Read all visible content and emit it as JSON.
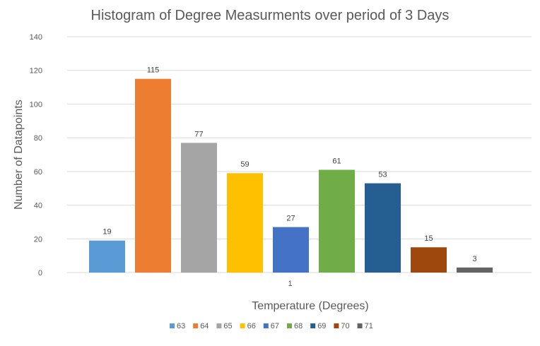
{
  "chart_data": {
    "type": "bar",
    "title": "Histogram of Degree Measurments over period of 3 Days",
    "xlabel": "Temperature (Degrees)",
    "ylabel": "Number of Datapoints",
    "categories": [
      "1"
    ],
    "ylim": [
      0,
      140
    ],
    "yticks": [
      0,
      20,
      40,
      60,
      80,
      100,
      120,
      140
    ],
    "grid": true,
    "legend_position": "bottom",
    "series": [
      {
        "name": "63",
        "values": [
          19
        ],
        "color": "#5b9bd5"
      },
      {
        "name": "64",
        "values": [
          115
        ],
        "color": "#ed7d31"
      },
      {
        "name": "65",
        "values": [
          77
        ],
        "color": "#a5a5a5"
      },
      {
        "name": "66",
        "values": [
          59
        ],
        "color": "#ffc000"
      },
      {
        "name": "67",
        "values": [
          27
        ],
        "color": "#4472c4"
      },
      {
        "name": "68",
        "values": [
          61
        ],
        "color": "#70ad47"
      },
      {
        "name": "69",
        "values": [
          53
        ],
        "color": "#255e91"
      },
      {
        "name": "70",
        "values": [
          15
        ],
        "color": "#9e480e"
      },
      {
        "name": "71",
        "values": [
          3
        ],
        "color": "#636363"
      }
    ]
  }
}
